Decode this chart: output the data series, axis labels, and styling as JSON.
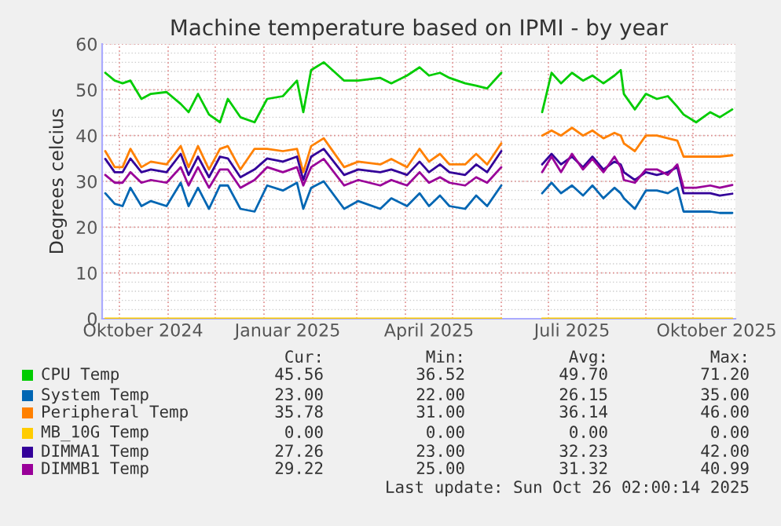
{
  "chart_data": {
    "type": "line",
    "title": "Machine temperature based on IPMI - by year",
    "ylabel": "Degrees celcius",
    "x": [
      "2024-09-22",
      "2024-09-28",
      "2024-10-03",
      "2024-10-08",
      "2024-10-15",
      "2024-10-21",
      "2024-10-31",
      "2024-11-09",
      "2024-11-14",
      "2024-11-20",
      "2024-11-27",
      "2024-12-04",
      "2024-12-09",
      "2024-12-17",
      "2024-12-26",
      "2025-01-03",
      "2025-01-13",
      "2025-01-22",
      "2025-01-26",
      "2025-01-31",
      "2025-02-08",
      "2025-02-21",
      "2025-03-02",
      "2025-03-16",
      "2025-03-23",
      "2025-04-02",
      "2025-04-10",
      "2025-04-16",
      "2025-04-23",
      "2025-04-29",
      "2025-05-09",
      "2025-05-16",
      "2025-05-23",
      "2025-06-01",
      "2025-06-15",
      "2025-06-27",
      "2025-07-03",
      "2025-07-09",
      "2025-07-16",
      "2025-07-23",
      "2025-07-29",
      "2025-08-05",
      "2025-08-12",
      "2025-08-16",
      "2025-08-18",
      "2025-08-25",
      "2025-09-01",
      "2025-09-08",
      "2025-09-15",
      "2025-09-21",
      "2025-09-25",
      "2025-10-03",
      "2025-10-12",
      "2025-10-18",
      "2025-10-26"
    ],
    "series": [
      {
        "name": "CPU Temp",
        "color": "#00cc00",
        "values": [
          53.7,
          52.0,
          51.4,
          52.0,
          48.0,
          49.1,
          49.5,
          46.9,
          45.1,
          49.1,
          44.6,
          42.9,
          48.0,
          44.0,
          42.9,
          48.0,
          48.6,
          52.0,
          45.1,
          54.3,
          56.0,
          52.0,
          52.0,
          52.6,
          51.4,
          53.1,
          54.9,
          53.1,
          53.7,
          52.6,
          51.4,
          50.9,
          50.3,
          53.7,
          null,
          45.1,
          53.7,
          51.4,
          53.7,
          52.0,
          53.1,
          51.4,
          53.1,
          54.3,
          49.1,
          45.7,
          49.1,
          48.0,
          48.6,
          46.3,
          44.6,
          42.9,
          45.1,
          44.0,
          45.7
        ]
      },
      {
        "name": "System Temp",
        "color": "#0066b3",
        "values": [
          27.4,
          25.1,
          24.6,
          28.6,
          24.6,
          25.7,
          24.6,
          29.7,
          24.6,
          28.6,
          24.0,
          29.1,
          29.1,
          24.0,
          23.4,
          29.1,
          28.0,
          29.7,
          24.0,
          28.6,
          30.0,
          24.0,
          25.7,
          24.0,
          26.3,
          24.6,
          27.4,
          24.6,
          26.9,
          24.6,
          24.0,
          26.9,
          24.6,
          29.1,
          null,
          27.4,
          29.7,
          27.4,
          29.1,
          26.9,
          29.1,
          26.3,
          28.6,
          27.4,
          26.3,
          24.0,
          28.0,
          28.0,
          27.4,
          28.6,
          23.4,
          23.4,
          23.4,
          23.1,
          23.1
        ]
      },
      {
        "name": "Peripheral Temp",
        "color": "#ff8000",
        "values": [
          36.6,
          33.1,
          33.1,
          37.1,
          33.1,
          34.3,
          33.7,
          37.7,
          33.1,
          37.7,
          32.6,
          37.1,
          37.7,
          32.6,
          37.1,
          37.1,
          36.6,
          37.1,
          32.0,
          37.7,
          39.4,
          33.1,
          34.3,
          33.7,
          34.9,
          33.1,
          37.1,
          34.3,
          36.0,
          33.7,
          33.7,
          36.0,
          33.7,
          38.3,
          null,
          40.0,
          41.1,
          40.0,
          41.7,
          40.0,
          41.1,
          39.4,
          40.6,
          40.0,
          38.3,
          36.6,
          40.0,
          40.0,
          39.4,
          38.9,
          35.4,
          35.4,
          35.4,
          35.4,
          35.7
        ]
      },
      {
        "name": "MB_10G Temp",
        "color": "#ffcc00",
        "values": [
          0,
          0,
          0,
          0,
          0,
          0,
          0,
          0,
          0,
          0,
          0,
          0,
          0,
          0,
          0,
          0,
          0,
          0,
          0,
          0,
          0,
          0,
          0,
          0,
          0,
          0,
          0,
          0,
          0,
          0,
          0,
          0,
          0,
          0,
          null,
          0,
          0,
          0,
          0,
          0,
          0,
          0,
          0,
          0,
          0,
          0,
          0,
          0,
          0,
          0,
          0,
          0,
          0,
          0,
          0
        ]
      },
      {
        "name": "DIMMA1 Temp",
        "color": "#330099",
        "values": [
          34.9,
          32.0,
          32.0,
          35.0,
          32.0,
          32.6,
          32.0,
          36.0,
          31.4,
          35.4,
          30.9,
          35.4,
          35.0,
          30.9,
          32.6,
          35.0,
          34.3,
          35.4,
          30.3,
          35.4,
          37.1,
          31.4,
          32.6,
          32.0,
          32.6,
          31.4,
          34.3,
          32.0,
          33.7,
          32.0,
          31.4,
          33.7,
          32.0,
          36.6,
          null,
          33.7,
          36.0,
          33.7,
          35.4,
          33.1,
          35.4,
          32.6,
          34.3,
          33.7,
          32.0,
          30.3,
          32.0,
          31.4,
          32.0,
          33.1,
          27.4,
          27.4,
          27.4,
          26.9,
          27.3
        ]
      },
      {
        "name": "DIMMB1 Temp",
        "color": "#990099",
        "values": [
          31.4,
          29.7,
          29.7,
          32.0,
          29.7,
          30.3,
          29.7,
          33.1,
          29.1,
          33.1,
          28.6,
          32.6,
          32.6,
          28.6,
          30.3,
          33.1,
          32.0,
          33.1,
          29.1,
          33.1,
          34.9,
          29.1,
          30.3,
          29.1,
          30.3,
          29.1,
          32.0,
          29.7,
          30.9,
          29.7,
          29.1,
          30.9,
          29.7,
          33.1,
          null,
          32.0,
          35.4,
          32.0,
          36.0,
          32.6,
          34.9,
          32.0,
          35.4,
          33.1,
          30.3,
          29.7,
          32.6,
          32.6,
          31.4,
          33.7,
          28.6,
          28.6,
          29.1,
          28.6,
          29.2
        ]
      }
    ],
    "xlim": [
      "2024-09-20",
      "2025-10-28"
    ],
    "xticks": [
      {
        "value": "2024-10-01",
        "label": null
      },
      {
        "value": "2024-10-16",
        "label": "Oktober 2024"
      },
      {
        "value": "2024-11-01",
        "label": null
      },
      {
        "value": "2024-12-01",
        "label": null
      },
      {
        "value": "2025-01-01",
        "label": null
      },
      {
        "value": "2025-01-16",
        "label": "Januar 2025"
      },
      {
        "value": "2025-02-01",
        "label": null
      },
      {
        "value": "2025-03-01",
        "label": null
      },
      {
        "value": "2025-04-01",
        "label": null
      },
      {
        "value": "2025-04-16",
        "label": "April 2025"
      },
      {
        "value": "2025-05-01",
        "label": null
      },
      {
        "value": "2025-06-01",
        "label": null
      },
      {
        "value": "2025-07-01",
        "label": null
      },
      {
        "value": "2025-07-16",
        "label": "Juli 2025"
      },
      {
        "value": "2025-08-01",
        "label": null
      },
      {
        "value": "2025-09-01",
        "label": null
      },
      {
        "value": "2025-10-01",
        "label": null
      },
      {
        "value": "2025-10-16",
        "label": "Oktober 2025"
      }
    ],
    "ylim": [
      0,
      60
    ],
    "yticks": [
      0,
      10,
      20,
      30,
      40,
      50,
      60
    ],
    "grid": true,
    "legend": "bottom",
    "marker": "none",
    "line_style": "solid",
    "annotations": [
      "Cur:",
      "Min:",
      "Avg:",
      "Max:",
      "45.56",
      "36.52",
      "49.70",
      "71.20",
      "23.00",
      "22.00",
      "26.15",
      "35.00",
      "35.78",
      "31.00",
      "36.14",
      "46.00",
      "0.00",
      "0.00",
      "0.00",
      "0.00",
      "27.26",
      "23.00",
      "32.23",
      "42.00",
      "29.22",
      "25.00",
      "31.32",
      "40.99",
      "Last update: Sun Oct 26 02:00:14 2025"
    ]
  }
}
